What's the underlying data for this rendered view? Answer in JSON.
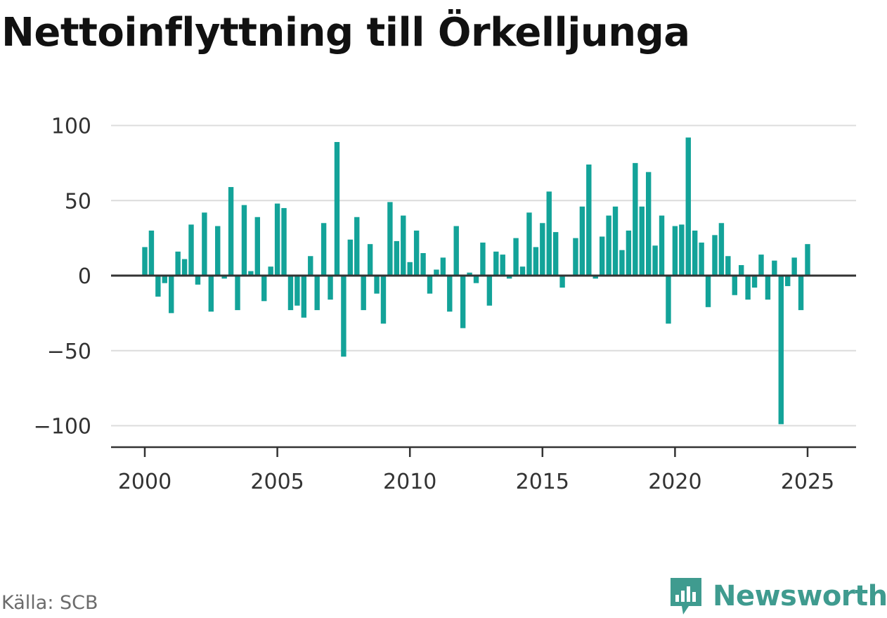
{
  "title": "Nettoinflyttning till Örkelljunga",
  "source": "Källa: SCB",
  "brand": {
    "name": "Newsworthy",
    "icon": "newsworthy-logo-icon",
    "color": "#3f9b8f"
  },
  "chart_data": {
    "type": "bar",
    "title": "Nettoinflyttning till Örkelljunga",
    "xlabel": "",
    "ylabel": "",
    "ylim": [
      -110,
      100
    ],
    "xlim": [
      1999.25,
      2025.6
    ],
    "yticks": [
      100,
      50,
      0,
      -50,
      -100
    ],
    "ytick_labels": [
      "100",
      "50",
      "0",
      "−50",
      "−100"
    ],
    "xticks": [
      2000,
      2005,
      2010,
      2015,
      2020,
      2025
    ],
    "xtick_labels": [
      "2000",
      "2005",
      "2010",
      "2015",
      "2020",
      "2025"
    ],
    "grid": true,
    "bar_color": "#13a399",
    "frequency": "quarterly",
    "first_period": "2000 Q1",
    "values": [
      19,
      30,
      -14,
      -5,
      -25,
      16,
      11,
      34,
      -6,
      42,
      -24,
      33,
      -2,
      59,
      -23,
      47,
      3,
      39,
      -17,
      6,
      48,
      45,
      -23,
      -20,
      -28,
      13,
      -23,
      35,
      -16,
      89,
      -54,
      24,
      39,
      -23,
      21,
      -12,
      -32,
      49,
      23,
      40,
      9,
      30,
      15,
      -12,
      4,
      12,
      -24,
      33,
      -35,
      2,
      -5,
      22,
      -20,
      16,
      14,
      -2,
      25,
      6,
      42,
      19,
      35,
      56,
      29,
      -8,
      0,
      25,
      46,
      74,
      -2,
      26,
      40,
      46,
      17,
      30,
      75,
      46,
      69,
      20,
      40,
      -32,
      33,
      34,
      92,
      30,
      22,
      -21,
      27,
      35,
      13,
      -13,
      7,
      -16,
      -8,
      14,
      -16,
      10,
      -99,
      -7,
      12,
      -23,
      21
    ]
  }
}
